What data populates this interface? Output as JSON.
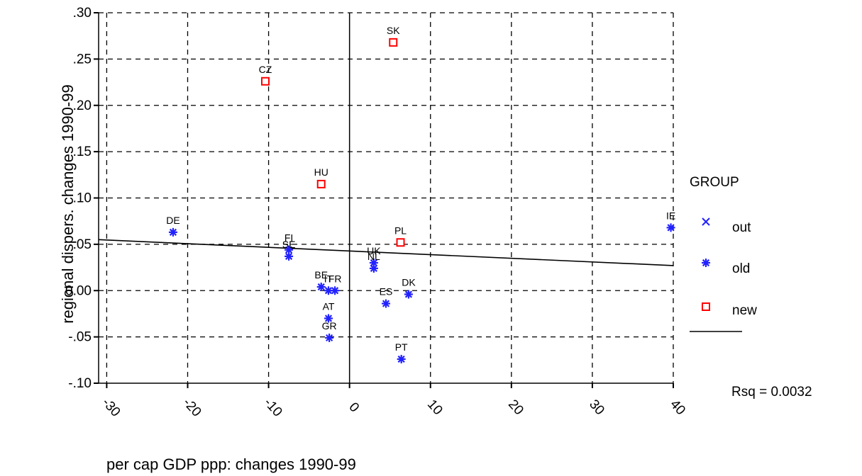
{
  "chart_data": {
    "type": "scatter",
    "title": "",
    "xlabel": "per cap GDP ppp: changes 1990-99",
    "ylabel": "regional dispers. changes 1990-99",
    "xlim": [
      -31,
      40
    ],
    "ylim": [
      -0.1,
      0.3
    ],
    "x_ticks": [
      -30,
      -20,
      -10,
      0,
      10,
      20,
      30,
      40
    ],
    "x_tick_labels": [
      "-30",
      "-20",
      "-10",
      "0",
      "10",
      "20",
      "30",
      "40"
    ],
    "y_ticks": [
      -0.1,
      -0.05,
      0.0,
      0.05,
      0.1,
      0.15,
      0.2,
      0.25,
      0.3
    ],
    "y_tick_labels": [
      "-.10",
      "-.05",
      "0.00",
      ".05",
      ".10",
      ".15",
      ".20",
      ".25",
      ".30"
    ],
    "grid": true,
    "legend_position": "right",
    "legend_title": "GROUP",
    "colors": {
      "out": "#2222ff",
      "old": "#2222ff",
      "new": "#ff0000",
      "fit": "#000000"
    },
    "series": [
      {
        "name": "out",
        "marker": "x",
        "points": []
      },
      {
        "name": "old",
        "marker": "asterisk",
        "points": [
          {
            "label": "DE",
            "x": -21.8,
            "y": 0.063
          },
          {
            "label": "FI",
            "x": -7.5,
            "y": 0.044
          },
          {
            "label": "SE",
            "x": -7.5,
            "y": 0.037
          },
          {
            "label": "BE",
            "x": -3.5,
            "y": 0.004
          },
          {
            "label": "IT",
            "x": -2.6,
            "y": 0.0
          },
          {
            "label": "FR",
            "x": -1.8,
            "y": 0.0
          },
          {
            "label": "AT",
            "x": -2.6,
            "y": -0.03
          },
          {
            "label": "GR",
            "x": -2.5,
            "y": -0.051
          },
          {
            "label": "UK",
            "x": 3.0,
            "y": 0.03
          },
          {
            "label": "NL",
            "x": 3.0,
            "y": 0.024
          },
          {
            "label": "ES",
            "x": 4.5,
            "y": -0.014
          },
          {
            "label": "DK",
            "x": 7.3,
            "y": -0.004
          },
          {
            "label": "PT",
            "x": 6.4,
            "y": -0.074
          },
          {
            "label": "IE",
            "x": 39.7,
            "y": 0.068
          }
        ]
      },
      {
        "name": "new",
        "marker": "square",
        "points": [
          {
            "label": "SK",
            "x": 5.4,
            "y": 0.268
          },
          {
            "label": "CZ",
            "x": -10.4,
            "y": 0.226
          },
          {
            "label": "HU",
            "x": -3.5,
            "y": 0.115
          },
          {
            "label": "PL",
            "x": 6.3,
            "y": 0.052
          }
        ]
      }
    ],
    "fit_line": {
      "x1": -31,
      "y1": 0.055,
      "x2": 40,
      "y2": 0.027
    },
    "rsq_label": "Rsq = 0.0032"
  }
}
